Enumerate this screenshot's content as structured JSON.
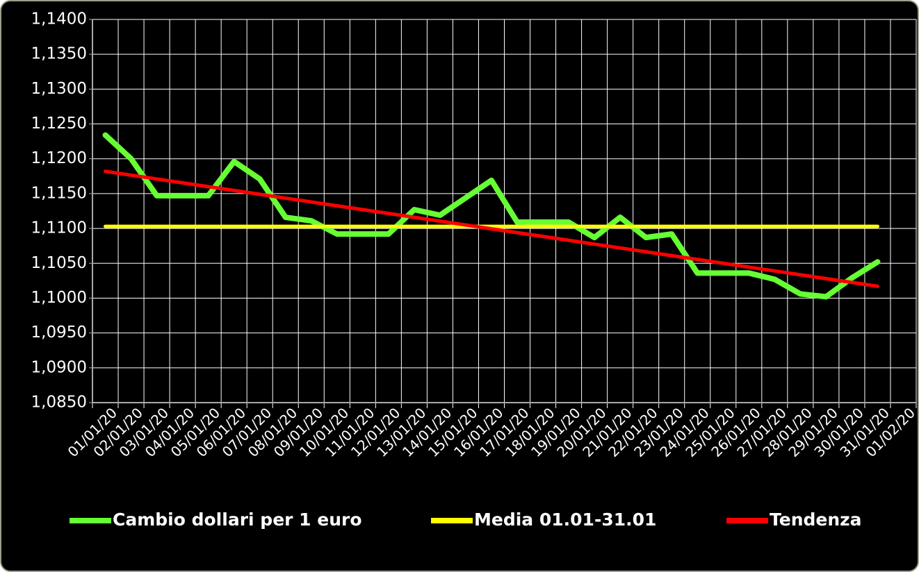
{
  "chart_data": {
    "type": "line",
    "categories": [
      "01/01/20",
      "02/01/20",
      "03/01/20",
      "04/01/20",
      "05/01/20",
      "06/01/20",
      "07/01/20",
      "08/01/20",
      "09/01/20",
      "10/01/20",
      "11/01/20",
      "12/01/20",
      "13/01/20",
      "14/01/20",
      "15/01/20",
      "16/01/20",
      "17/01/20",
      "18/01/20",
      "19/01/20",
      "20/01/20",
      "21/01/20",
      "22/01/20",
      "23/01/20",
      "24/01/20",
      "25/01/20",
      "26/01/20",
      "27/01/20",
      "28/01/20",
      "29/01/20",
      "30/01/20",
      "31/01/20",
      "01/02/20"
    ],
    "series": [
      {
        "name": "Cambio dollari per 1 euro",
        "color": "#66ff33",
        "values": [
          1.1234,
          1.12,
          1.1147,
          1.1147,
          1.1147,
          1.1196,
          1.1171,
          1.1116,
          1.1111,
          1.1092,
          1.1092,
          1.1092,
          1.1127,
          1.1119,
          1.1144,
          1.1169,
          1.1109,
          1.1109,
          1.1109,
          1.1087,
          1.1116,
          1.1087,
          1.1092,
          1.1036,
          1.1036,
          1.1036,
          1.1027,
          1.1006,
          1.1002,
          1.1029,
          1.1052,
          null
        ]
      },
      {
        "name": "Media 01.01-31.01",
        "color": "#ffff00",
        "values": [
          1.1103,
          1.1103,
          1.1103,
          1.1103,
          1.1103,
          1.1103,
          1.1103,
          1.1103,
          1.1103,
          1.1103,
          1.1103,
          1.1103,
          1.1103,
          1.1103,
          1.1103,
          1.1103,
          1.1103,
          1.1103,
          1.1103,
          1.1103,
          1.1103,
          1.1103,
          1.1103,
          1.1103,
          1.1103,
          1.1103,
          1.1103,
          1.1103,
          1.1103,
          1.1103,
          1.1103,
          null
        ]
      },
      {
        "name": "Tendenza",
        "color": "#ff0000",
        "values": [
          1.1182,
          1.11765,
          1.1171,
          1.11655,
          1.116,
          1.11545,
          1.1149,
          1.11435,
          1.1138,
          1.11325,
          1.1127,
          1.11215,
          1.1116,
          1.11105,
          1.1105,
          1.10995,
          1.1094,
          1.10885,
          1.1083,
          1.10775,
          1.1072,
          1.10665,
          1.1061,
          1.10555,
          1.105,
          1.10445,
          1.1039,
          1.10335,
          1.1028,
          1.10225,
          1.1017,
          null
        ]
      }
    ],
    "ylim": [
      1.085,
      1.14
    ],
    "yticks": [
      {
        "value": 1.085,
        "label": "1,0850"
      },
      {
        "value": 1.09,
        "label": "1,0900"
      },
      {
        "value": 1.095,
        "label": "1,0950"
      },
      {
        "value": 1.1,
        "label": "1,1000"
      },
      {
        "value": 1.105,
        "label": "1,1050"
      },
      {
        "value": 1.11,
        "label": "1,1100"
      },
      {
        "value": 1.115,
        "label": "1,1150"
      },
      {
        "value": 1.12,
        "label": "1,1200"
      },
      {
        "value": 1.125,
        "label": "1,1250"
      },
      {
        "value": 1.13,
        "label": "1,1300"
      },
      {
        "value": 1.135,
        "label": "1,1350"
      },
      {
        "value": 1.14,
        "label": "1,1400"
      }
    ],
    "grid": true,
    "legend": "bottom"
  }
}
